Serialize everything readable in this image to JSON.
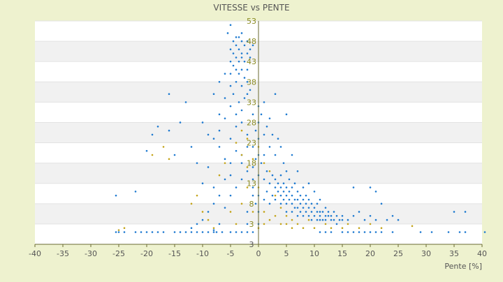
{
  "colors": {
    "background": "#eef2cf",
    "plot_background": "#ffffff",
    "band": "#f1f1f1",
    "series_blue": "#1e7ad0",
    "series_yellow": "#c4a41a",
    "axis": "#6a6a30",
    "title_text": "#555555",
    "tick_text": "#555555",
    "y_tick_text": "#8a8a20"
  },
  "chart_data": {
    "type": "scatter",
    "title": "VITESSE vs PENTE",
    "xlabel": "Pente [%]",
    "ylabel": "",
    "xlim": [
      -40,
      40
    ],
    "ylim": [
      -2,
      53
    ],
    "x_ticks": [
      -40,
      -35,
      -30,
      -25,
      -20,
      -15,
      -10,
      -5,
      0,
      5,
      10,
      15,
      20,
      25,
      30,
      35,
      40
    ],
    "y_ticks": [
      53,
      48,
      43,
      38,
      33,
      28,
      23,
      18,
      13,
      8,
      3
    ],
    "y_tick_labels": [
      "53",
      "48",
      "43",
      "38",
      "33",
      "28",
      "23",
      "18",
      "13",
      "8",
      "3"
    ],
    "y_bottom_label": "3",
    "grid": "alternating horizontal bands",
    "legend": "none",
    "series": [
      {
        "color": "#1e7ad0",
        "points": [
          [
            -25.5,
            1
          ],
          [
            -25,
            1
          ],
          [
            -24,
            1
          ],
          [
            -22,
            1
          ],
          [
            -21,
            1
          ],
          [
            -20,
            1
          ],
          [
            -19,
            1
          ],
          [
            -18,
            1
          ],
          [
            -17,
            1
          ],
          [
            -15,
            1
          ],
          [
            -14,
            1
          ],
          [
            -13,
            1
          ],
          [
            -12,
            1
          ],
          [
            -11,
            1
          ],
          [
            -10,
            1
          ],
          [
            -9,
            1
          ],
          [
            -8,
            1
          ],
          [
            -7.5,
            1
          ],
          [
            -6.5,
            1
          ],
          [
            -5,
            1
          ],
          [
            -4,
            1
          ],
          [
            -3,
            1
          ],
          [
            -2,
            1
          ],
          [
            -1,
            1
          ],
          [
            11,
            1
          ],
          [
            12,
            1
          ],
          [
            13,
            1
          ],
          [
            15,
            1
          ],
          [
            16,
            1
          ],
          [
            17,
            1
          ],
          [
            18,
            1
          ],
          [
            19,
            1
          ],
          [
            20,
            1
          ],
          [
            21,
            1
          ],
          [
            22,
            1
          ],
          [
            24,
            1
          ],
          [
            29,
            1
          ],
          [
            31,
            1
          ],
          [
            34,
            1
          ],
          [
            36,
            1
          ],
          [
            37,
            1
          ],
          [
            40.5,
            1
          ],
          [
            -25.5,
            10
          ],
          [
            -22,
            11
          ],
          [
            -20,
            21
          ],
          [
            -19,
            25
          ],
          [
            -18,
            27
          ],
          [
            -16,
            26
          ],
          [
            -16,
            35
          ],
          [
            -15,
            20
          ],
          [
            -14,
            28
          ],
          [
            -13,
            33
          ],
          [
            -12,
            22
          ],
          [
            -11,
            18
          ],
          [
            -10,
            13
          ],
          [
            -10,
            28
          ],
          [
            -9,
            17
          ],
          [
            -9,
            25
          ],
          [
            -8,
            35
          ],
          [
            -8,
            12
          ],
          [
            -7,
            22
          ],
          [
            -7,
            30
          ],
          [
            -6,
            19
          ],
          [
            -6,
            29
          ],
          [
            -5.5,
            50
          ],
          [
            -5,
            52
          ],
          [
            -5,
            18
          ],
          [
            -5,
            24
          ],
          [
            -4,
            49
          ],
          [
            -4,
            38
          ],
          [
            -4,
            27
          ],
          [
            -3,
            50
          ],
          [
            -3,
            45
          ],
          [
            -3,
            31
          ],
          [
            -3,
            20
          ],
          [
            -2,
            41
          ],
          [
            -2,
            35
          ],
          [
            -2,
            25
          ],
          [
            -1,
            47
          ],
          [
            -1,
            30
          ],
          [
            -1,
            17
          ],
          [
            -5,
            46
          ],
          [
            -5,
            43
          ],
          [
            -5,
            40
          ],
          [
            -5,
            37
          ],
          [
            -4.5,
            48
          ],
          [
            -4.5,
            45
          ],
          [
            -4.5,
            42
          ],
          [
            -4.5,
            35
          ],
          [
            -4,
            47
          ],
          [
            -4,
            44
          ],
          [
            -4,
            41
          ],
          [
            -3.5,
            49
          ],
          [
            -3.5,
            46
          ],
          [
            -3.5,
            43
          ],
          [
            -3.5,
            40
          ],
          [
            -3.5,
            33
          ],
          [
            -3,
            48
          ],
          [
            -3,
            44
          ],
          [
            -3,
            41
          ],
          [
            -3,
            37
          ],
          [
            -2.5,
            47
          ],
          [
            -2.5,
            43
          ],
          [
            -2.5,
            39
          ],
          [
            -2.5,
            34
          ],
          [
            -2,
            48
          ],
          [
            -2,
            45
          ],
          [
            -2,
            38
          ],
          [
            -1.5,
            46
          ],
          [
            -1.5,
            44
          ],
          [
            -1.5,
            36
          ],
          [
            -6,
            40
          ],
          [
            -6,
            34
          ],
          [
            -7,
            38
          ],
          [
            -7,
            26
          ],
          [
            -8,
            24
          ],
          [
            -5,
            32
          ],
          [
            -4,
            30
          ],
          [
            -3,
            28
          ],
          [
            -2,
            22
          ],
          [
            -1,
            22
          ],
          [
            -1,
            12
          ],
          [
            0,
            32
          ],
          [
            0,
            28
          ],
          [
            0,
            24
          ],
          [
            0,
            20
          ],
          [
            0,
            15
          ],
          [
            0,
            10
          ],
          [
            0,
            6
          ],
          [
            0,
            3
          ],
          [
            0.5,
            30
          ],
          [
            0.5,
            18
          ],
          [
            1,
            33
          ],
          [
            1,
            25
          ],
          [
            1,
            20
          ],
          [
            1,
            14
          ],
          [
            1,
            9
          ],
          [
            1.5,
            27
          ],
          [
            1.5,
            16
          ],
          [
            1.5,
            11
          ],
          [
            2,
            29
          ],
          [
            2,
            22
          ],
          [
            2,
            13
          ],
          [
            2,
            8
          ],
          [
            2.5,
            25
          ],
          [
            2.5,
            15
          ],
          [
            2.5,
            10
          ],
          [
            3,
            35
          ],
          [
            3,
            20
          ],
          [
            3,
            14
          ],
          [
            3,
            12
          ],
          [
            3,
            9
          ],
          [
            3.5,
            24
          ],
          [
            3.5,
            13
          ],
          [
            3.5,
            11
          ],
          [
            4,
            22
          ],
          [
            4,
            15
          ],
          [
            4,
            12
          ],
          [
            4,
            10
          ],
          [
            4,
            8
          ],
          [
            4.5,
            18
          ],
          [
            4.5,
            13
          ],
          [
            4.5,
            11
          ],
          [
            4.5,
            9
          ],
          [
            5,
            30
          ],
          [
            5,
            16
          ],
          [
            5,
            12
          ],
          [
            5,
            10
          ],
          [
            5,
            8
          ],
          [
            5,
            6
          ],
          [
            5.5,
            14
          ],
          [
            5.5,
            11
          ],
          [
            5.5,
            9
          ],
          [
            6,
            20
          ],
          [
            6,
            12
          ],
          [
            6,
            10
          ],
          [
            6,
            8
          ],
          [
            6,
            6
          ],
          [
            6.5,
            13
          ],
          [
            6.5,
            9
          ],
          [
            6.5,
            7
          ],
          [
            7,
            16
          ],
          [
            7,
            11
          ],
          [
            7,
            9
          ],
          [
            7,
            7
          ],
          [
            7,
            5
          ],
          [
            7.5,
            10
          ],
          [
            7.5,
            8
          ],
          [
            7.5,
            6
          ],
          [
            8,
            12
          ],
          [
            8,
            9
          ],
          [
            8,
            7
          ],
          [
            8,
            5
          ],
          [
            8.5,
            10
          ],
          [
            8.5,
            8
          ],
          [
            8.5,
            6
          ],
          [
            9,
            13
          ],
          [
            9,
            9
          ],
          [
            9,
            7
          ],
          [
            9,
            5
          ],
          [
            9.5,
            8
          ],
          [
            9.5,
            6
          ],
          [
            9.5,
            4
          ],
          [
            10,
            11
          ],
          [
            10,
            7
          ],
          [
            10,
            5
          ],
          [
            10.5,
            8
          ],
          [
            10.5,
            6
          ],
          [
            10.5,
            4
          ],
          [
            11,
            9
          ],
          [
            11,
            6
          ],
          [
            11,
            5
          ],
          [
            11,
            4
          ],
          [
            11.5,
            6
          ],
          [
            11.5,
            4
          ],
          [
            12,
            7
          ],
          [
            12,
            5
          ],
          [
            12,
            4
          ],
          [
            12.5,
            6
          ],
          [
            12.5,
            5
          ],
          [
            13,
            5
          ],
          [
            13,
            4
          ],
          [
            13.5,
            6
          ],
          [
            13.5,
            4
          ],
          [
            14,
            5
          ],
          [
            14,
            3
          ],
          [
            14.5,
            4
          ],
          [
            15,
            5
          ],
          [
            15,
            4
          ],
          [
            16,
            4
          ],
          [
            17,
            12
          ],
          [
            17,
            5
          ],
          [
            18,
            6
          ],
          [
            19,
            4
          ],
          [
            20,
            12
          ],
          [
            20,
            5
          ],
          [
            21,
            11
          ],
          [
            21,
            4
          ],
          [
            22,
            8
          ],
          [
            23,
            4
          ],
          [
            24,
            5
          ],
          [
            25,
            4
          ],
          [
            35,
            6
          ],
          [
            37,
            6
          ],
          [
            -1,
            14
          ],
          [
            -1,
            10
          ],
          [
            -0.5,
            26
          ],
          [
            -0.5,
            19
          ],
          [
            -0.5,
            8
          ],
          [
            -2,
            16
          ],
          [
            -3,
            14
          ],
          [
            -4,
            12
          ],
          [
            -5,
            15
          ],
          [
            -6,
            14
          ],
          [
            -7,
            10
          ],
          [
            -8,
            8
          ],
          [
            -9,
            6
          ],
          [
            -10,
            4
          ],
          [
            -11,
            3
          ],
          [
            -12,
            2
          ],
          [
            -3,
            18
          ],
          [
            -4,
            21
          ],
          [
            -5,
            10
          ],
          [
            -6,
            7
          ],
          [
            -7,
            3
          ],
          [
            -8,
            1.5
          ],
          [
            -2,
            6
          ],
          [
            -2,
            3
          ]
        ]
      },
      {
        "color": "#c4a41a",
        "points": [
          [
            -25,
            1.5
          ],
          [
            -24,
            2
          ],
          [
            -12,
            8
          ],
          [
            -11,
            10
          ],
          [
            -10,
            6
          ],
          [
            -9,
            4
          ],
          [
            -8,
            2
          ],
          [
            -7,
            15
          ],
          [
            -6,
            18
          ],
          [
            -5,
            6
          ],
          [
            -4,
            23
          ],
          [
            -4,
            3
          ],
          [
            -3,
            26
          ],
          [
            -3,
            20
          ],
          [
            -3,
            8
          ],
          [
            -2,
            24
          ],
          [
            -2,
            17
          ],
          [
            -2,
            12
          ],
          [
            -1,
            19
          ],
          [
            -1,
            6
          ],
          [
            0,
            22
          ],
          [
            0,
            12
          ],
          [
            0,
            2
          ],
          [
            1,
            18
          ],
          [
            1,
            6
          ],
          [
            1,
            3
          ],
          [
            2,
            16
          ],
          [
            2,
            4
          ],
          [
            3,
            10
          ],
          [
            3,
            5
          ],
          [
            4,
            7
          ],
          [
            4,
            3
          ],
          [
            5,
            5
          ],
          [
            5,
            3
          ],
          [
            6,
            4
          ],
          [
            6,
            2
          ],
          [
            7,
            3
          ],
          [
            8,
            2
          ],
          [
            9,
            4
          ],
          [
            10,
            2
          ],
          [
            12,
            3
          ],
          [
            13,
            2
          ],
          [
            15,
            2
          ],
          [
            16,
            3
          ],
          [
            18,
            2
          ],
          [
            20,
            3
          ],
          [
            22,
            2
          ],
          [
            27.5,
            2.5
          ],
          [
            -16,
            19
          ],
          [
            -17,
            22
          ],
          [
            -19,
            20
          ]
        ]
      }
    ]
  }
}
